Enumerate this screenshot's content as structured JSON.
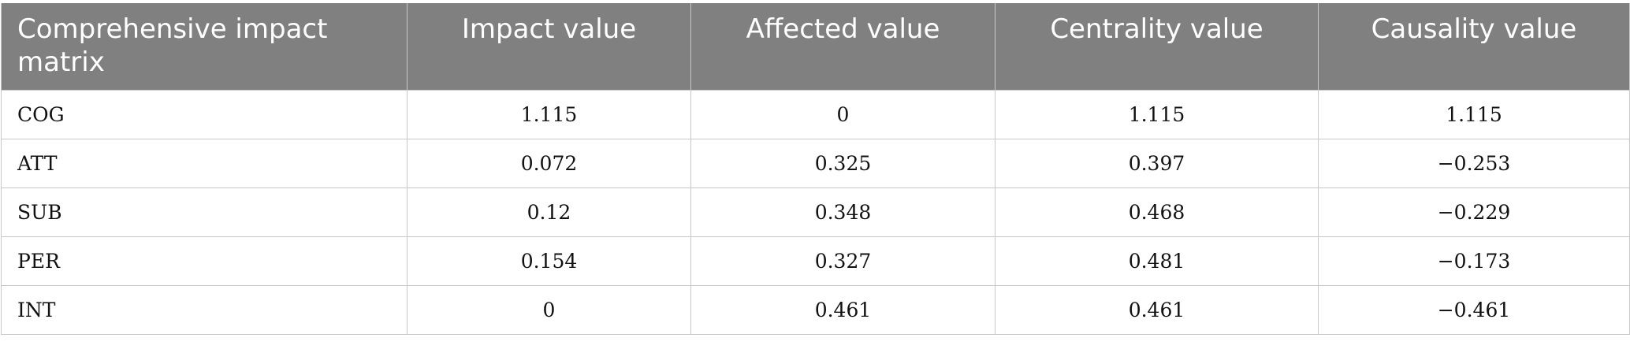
{
  "table": {
    "headers": [
      "Comprehensive impact matrix",
      "Impact value",
      "Affected value",
      "Centrality value",
      "Causality value"
    ],
    "rows": [
      [
        "COG",
        "1.115",
        "0",
        "1.115",
        "1.115"
      ],
      [
        "ATT",
        "0.072",
        "0.325",
        "0.397",
        "−0.253"
      ],
      [
        "SUB",
        "0.12",
        "0.348",
        "0.468",
        "−0.229"
      ],
      [
        "PER",
        "0.154",
        "0.327",
        "0.481",
        "−0.173"
      ],
      [
        "INT",
        "0",
        "0.461",
        "0.461",
        "−0.461"
      ]
    ]
  },
  "colors": {
    "header_bg": "#808080",
    "header_text": "#ffffff",
    "grid": "#c8c8c8"
  }
}
